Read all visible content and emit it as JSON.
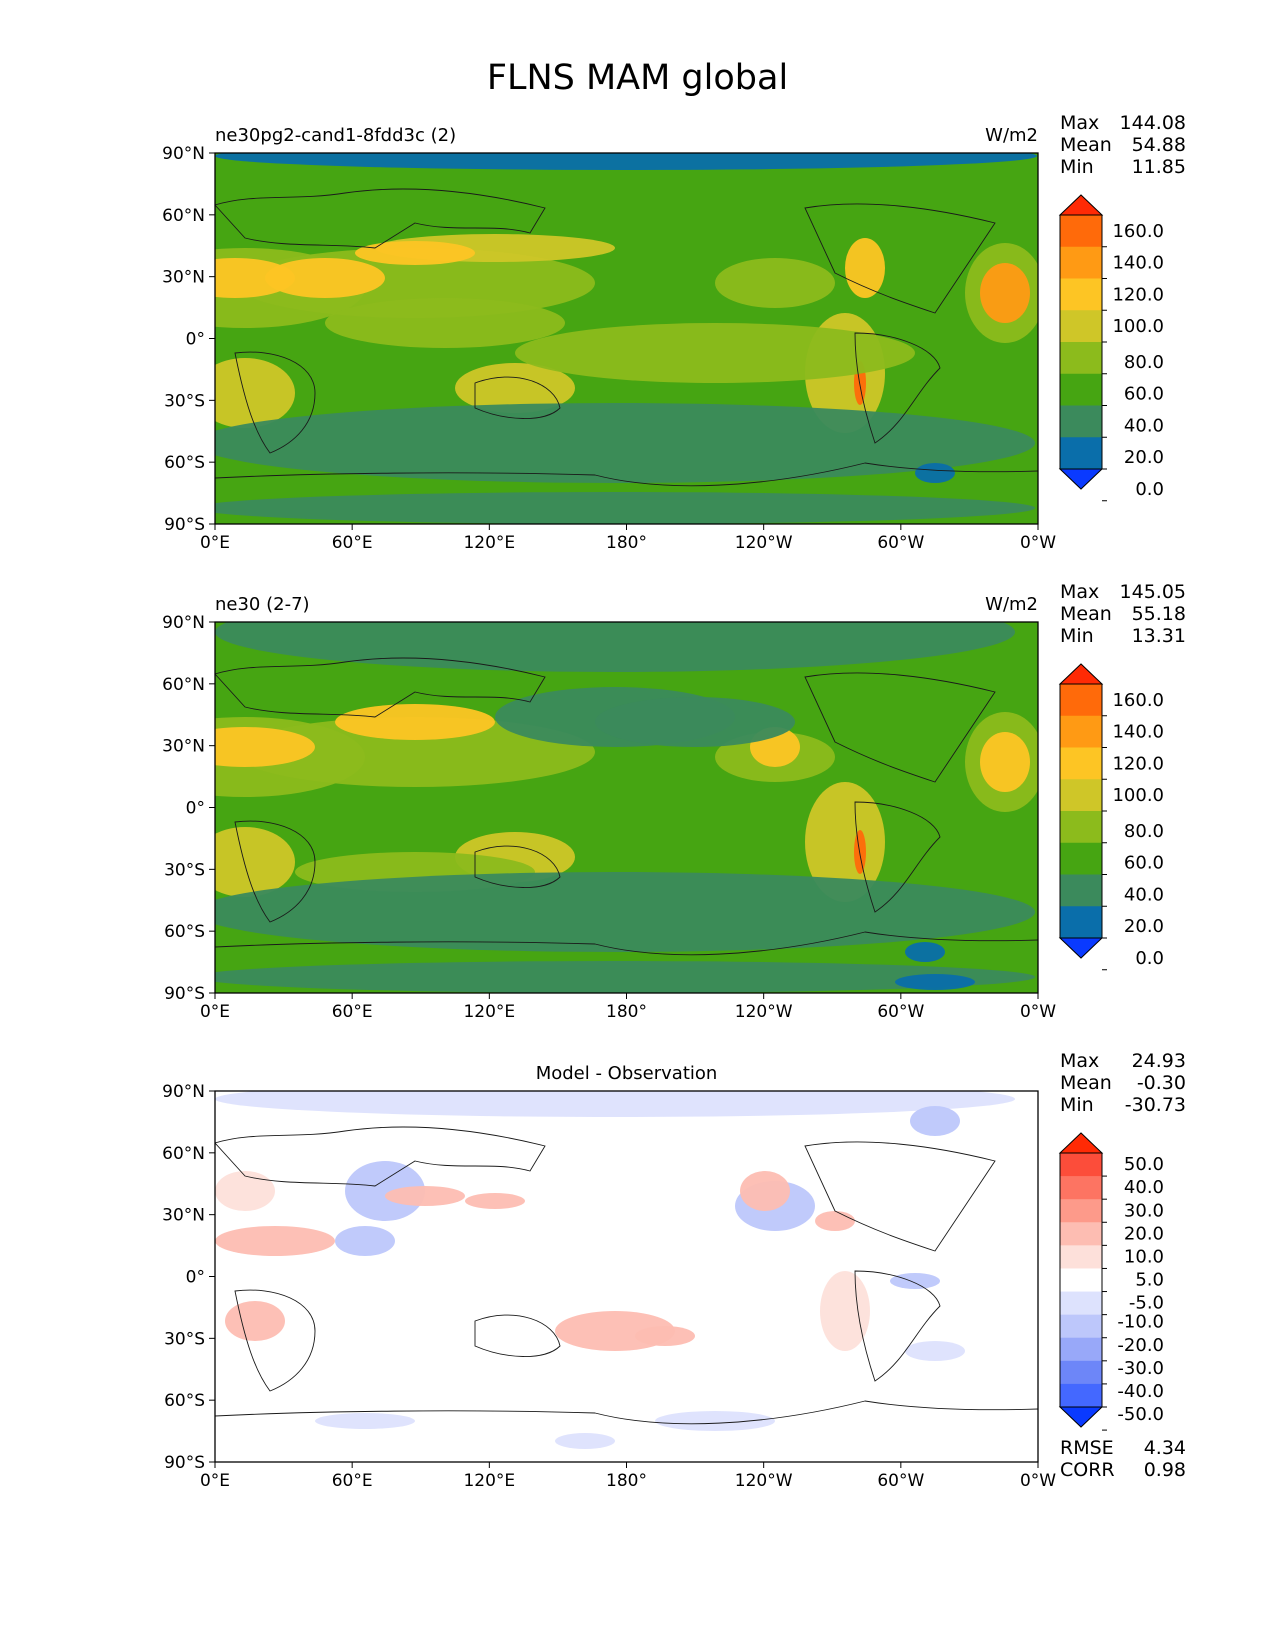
{
  "figure_title": "FLNS MAM global",
  "chart_data": [
    {
      "type": "heatmap",
      "panel_title_left": "ne30pg2-cand1-8fdd3c (2)",
      "panel_title_center": "",
      "units": "W/m2",
      "stats": [
        {
          "label": "Max",
          "value": "144.08"
        },
        {
          "label": "Mean",
          "value": "54.88"
        },
        {
          "label": "Min",
          "value": "11.85"
        }
      ],
      "x_ticks": [
        "0°E",
        "60°E",
        "120°E",
        "180°",
        "120°W",
        "60°W",
        "0°W"
      ],
      "y_ticks": [
        "90°N",
        "60°N",
        "30°N",
        "0°",
        "30°S",
        "60°S",
        "90°S"
      ],
      "colorbar_levels": [
        "160.0",
        "140.0",
        "120.0",
        "100.0",
        "80.0",
        "60.0",
        "40.0",
        "20.0",
        "0.0"
      ],
      "colorbar_colors": [
        "#ff2a05",
        "#ff6a0a",
        "#ff9a14",
        "#fdc524",
        "#cfc628",
        "#8cbb1c",
        "#46a512",
        "#3b8a5c",
        "#0a6eaa",
        "#0a3aff"
      ],
      "background_color": "#46a512",
      "footer": []
    },
    {
      "type": "heatmap",
      "panel_title_left": "ne30 (2-7)",
      "panel_title_center": "",
      "units": "W/m2",
      "stats": [
        {
          "label": "Max",
          "value": "145.05"
        },
        {
          "label": "Mean",
          "value": "55.18"
        },
        {
          "label": "Min",
          "value": "13.31"
        }
      ],
      "x_ticks": [
        "0°E",
        "60°E",
        "120°E",
        "180°",
        "120°W",
        "60°W",
        "0°W"
      ],
      "y_ticks": [
        "90°N",
        "60°N",
        "30°N",
        "0°",
        "30°S",
        "60°S",
        "90°S"
      ],
      "colorbar_levels": [
        "160.0",
        "140.0",
        "120.0",
        "100.0",
        "80.0",
        "60.0",
        "40.0",
        "20.0",
        "0.0"
      ],
      "colorbar_colors": [
        "#ff2a05",
        "#ff6a0a",
        "#ff9a14",
        "#fdc524",
        "#cfc628",
        "#8cbb1c",
        "#46a512",
        "#3b8a5c",
        "#0a6eaa",
        "#0a3aff"
      ],
      "background_color": "#46a512",
      "footer": []
    },
    {
      "type": "heatmap",
      "panel_title_left": "",
      "panel_title_center": "Model - Observation",
      "units": "",
      "stats": [
        {
          "label": "Max",
          "value": "24.93"
        },
        {
          "label": "Mean",
          "value": "-0.30"
        },
        {
          "label": "Min",
          "value": "-30.73"
        }
      ],
      "x_ticks": [
        "0°E",
        "60°E",
        "120°E",
        "180°",
        "120°W",
        "60°W",
        "0°W"
      ],
      "y_ticks": [
        "90°N",
        "60°N",
        "30°N",
        "0°",
        "30°S",
        "60°S",
        "90°S"
      ],
      "colorbar_levels": [
        "50.0",
        "40.0",
        "30.0",
        "20.0",
        "10.0",
        "5.0",
        "-5.0",
        "-10.0",
        "-20.0",
        "-30.0",
        "-40.0",
        "-50.0"
      ],
      "colorbar_colors": [
        "#ff2a05",
        "#fc4d3a",
        "#fd7462",
        "#fd9a8a",
        "#fdbdb2",
        "#fde0da",
        "#ffffff",
        "#dde2fd",
        "#bdc7fb",
        "#98a8f9",
        "#6d86f8",
        "#4468ff",
        "#0a3aff"
      ],
      "background_color": "#ffffff",
      "footer": [
        {
          "label": "RMSE",
          "value": "4.34"
        },
        {
          "label": "CORR",
          "value": "0.98"
        }
      ]
    }
  ]
}
